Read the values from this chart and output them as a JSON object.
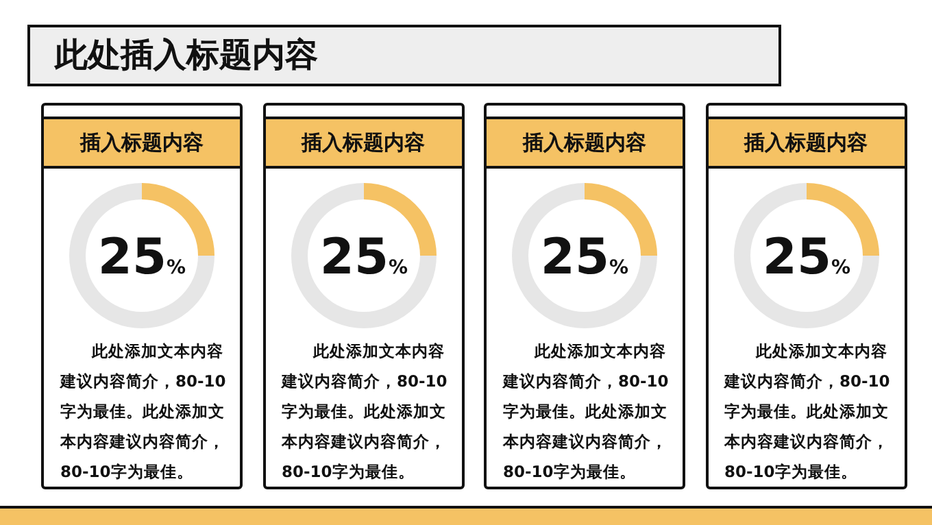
{
  "chart_data": [
    {
      "type": "other",
      "title": "此处插入标题内容"
    },
    {
      "type": "donut",
      "title": "插入标题内容",
      "categories": [
        null,
        null
      ],
      "values": [
        25,
        75
      ],
      "colors": [
        "#f5c264",
        "#e6e6e6"
      ],
      "annotations": [
        "25%",
        "此处添加文本内容建议内容简介，80-10字为最佳。此处添加文本内容建议内容简介，80-10字为最佳。"
      ]
    },
    {
      "type": "donut",
      "title": "插入标题内容",
      "categories": [
        null,
        null
      ],
      "values": [
        25,
        75
      ],
      "colors": [
        "#f5c264",
        "#e6e6e6"
      ],
      "annotations": [
        "25%",
        "此处添加文本内容建议内容简介，80-10字为最佳。此处添加文本内容建议内容简介，80-10字为最佳。"
      ]
    },
    {
      "type": "donut",
      "title": "插入标题内容",
      "categories": [
        null,
        null
      ],
      "values": [
        25,
        75
      ],
      "colors": [
        "#f5c264",
        "#e6e6e6"
      ],
      "annotations": [
        "25%",
        "此处添加文本内容建议内容简介，80-10字为最佳。此处添加文本内容建议内容简介，80-10字为最佳。"
      ]
    },
    {
      "type": "donut",
      "title": "插入标题内容",
      "categories": [
        null,
        null
      ],
      "values": [
        25,
        75
      ],
      "colors": [
        "#f5c264",
        "#e6e6e6"
      ],
      "annotations": [
        "25%",
        "此处添加文本内容建议内容简介，80-10字为最佳。此处添加文本内容建议内容简介，80-10字为最佳。"
      ]
    }
  ]
}
